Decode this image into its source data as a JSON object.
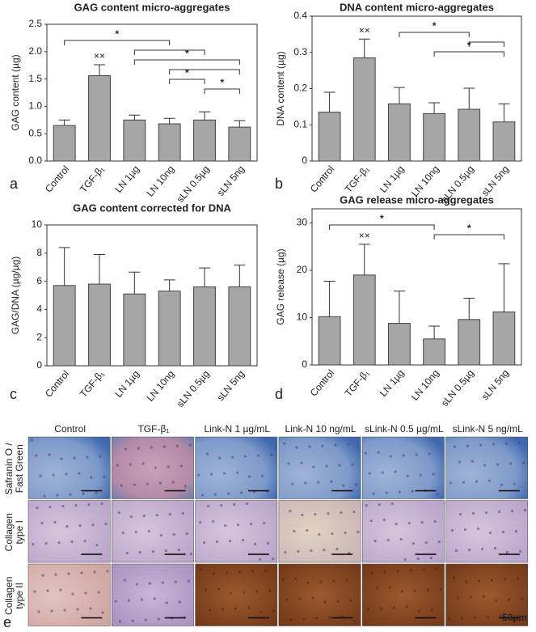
{
  "chart_data": [
    {
      "type": "bar",
      "title": "GAG content micro-aggregates",
      "ylabel": "GAG content (µg)",
      "panel": "a",
      "categories": [
        "Control",
        "TGF-β₁",
        "LN 1µg",
        "LN 10ng",
        "sLN 0.5µg",
        "sLN 5ng"
      ],
      "values": [
        0.65,
        1.56,
        0.75,
        0.68,
        0.75,
        0.62
      ],
      "errors": [
        0.1,
        0.2,
        0.09,
        0.1,
        0.15,
        0.12
      ],
      "color": "#a6a6a6",
      "ylim": [
        0,
        2.5
      ],
      "yticks": [
        {
          "value": 0,
          "label": "0.0"
        },
        0.5,
        {
          "value": 1,
          "label": "1.0"
        },
        1.5,
        {
          "value": 2,
          "label": "2.0"
        },
        2.5
      ],
      "annotations": [
        {
          "at": 1,
          "text": "××"
        }
      ],
      "brackets": [
        {
          "from": 0,
          "to": 3,
          "label": "*"
        },
        {
          "from": 2,
          "to": 4
        },
        {
          "from": 2,
          "to": 5,
          "label": "*"
        },
        {
          "from": 3,
          "to": 5
        },
        {
          "from": 3,
          "to": 4,
          "label": "*"
        },
        {
          "from": 4,
          "to": 5,
          "label": "*"
        }
      ]
    },
    {
      "type": "bar",
      "title": "DNA content micro-aggregates",
      "ylabel": "DNA content (µg)",
      "panel": "b",
      "categories": [
        "Control",
        "TGF-β₁",
        "LN 1µg",
        "LN 10ng",
        "sLN 0.5µg",
        "sLN 5ng"
      ],
      "values": [
        0.135,
        0.285,
        0.158,
        0.131,
        0.143,
        0.108
      ],
      "errors": [
        0.055,
        0.052,
        0.045,
        0.03,
        0.058,
        0.05
      ],
      "color": "#a6a6a6",
      "ylim": [
        0,
        0.4
      ],
      "yticks": [
        0,
        0.1,
        0.2,
        0.3,
        0.4
      ],
      "annotations": [
        {
          "at": 1,
          "text": "××"
        }
      ],
      "brackets": [
        {
          "from": 2,
          "to": 4,
          "label": "*"
        },
        {
          "from": 4,
          "to": 5
        },
        {
          "from": 3,
          "to": 5,
          "label": "*"
        }
      ]
    },
    {
      "type": "bar",
      "title": "GAG content corrected for DNA",
      "ylabel": "GAG/DNA (µg/µg)",
      "panel": "c",
      "categories": [
        "Control",
        "TGF-β₁",
        "LN 1µg",
        "LN 10ng",
        "sLN 0.5µg",
        "sLN 5ng"
      ],
      "values": [
        5.7,
        5.8,
        5.1,
        5.3,
        5.6,
        5.6
      ],
      "errors": [
        2.7,
        2.1,
        1.55,
        0.8,
        1.35,
        1.55
      ],
      "color": "#a6a6a6",
      "ylim": [
        0,
        10
      ],
      "yticks": [
        0,
        2,
        4,
        6,
        8,
        10
      ]
    },
    {
      "type": "bar",
      "title": "GAG release micro-aggregates",
      "ylabel": "GAG release (µg)",
      "panel": "d",
      "categories": [
        "Control",
        "TGF-β₁",
        "LN 1µg",
        "LN 10ng",
        "sLN 0.5µg",
        "sLN 5ng"
      ],
      "values": [
        10.2,
        19,
        8.8,
        5.5,
        9.6,
        11.2
      ],
      "errors": [
        7.5,
        6.5,
        6.8,
        2.7,
        4.5,
        10.2
      ],
      "color": "#a6a6a6",
      "ylim": [
        0,
        33
      ],
      "yticks": [
        0,
        10,
        20,
        30
      ],
      "annotations": [
        {
          "at": 1,
          "text": "××"
        }
      ],
      "brackets": [
        {
          "from": 0,
          "to": 3,
          "label": "*"
        },
        {
          "from": 3,
          "to": 5,
          "label": "*"
        }
      ]
    }
  ],
  "histology": {
    "panel": "e",
    "columns": [
      "Control",
      "TGF-β₁",
      "Link-N 1 µg/mL",
      "Link-N 10 ng/mL",
      "sLink-N 0.5 µg/mL",
      "sLink-N 5 ng/mL"
    ],
    "rows": [
      [
        "Safranin O /",
        "Fast Green"
      ],
      [
        "Collagen",
        "type I"
      ],
      [
        "Collagen",
        "type II"
      ]
    ],
    "scale_bar": "50µm"
  }
}
